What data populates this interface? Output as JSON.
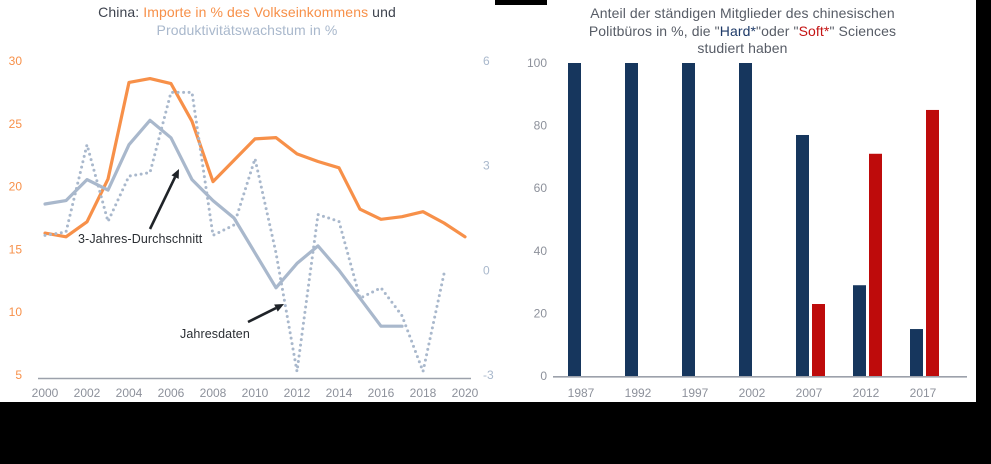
{
  "left_chart": {
    "title_line1_segments": [
      {
        "text": "China: ",
        "color": "#3E434E"
      },
      {
        "text": "Importe in % des Volkseinkommens",
        "color": "#F79049"
      },
      {
        "text": " und",
        "color": "#3E434E"
      }
    ],
    "title_line2_segments": [
      {
        "text": "Produktivitätswachstum in %",
        "color": "#A9B8CC"
      }
    ]
  },
  "right_chart": {
    "title_line1_segments": [
      {
        "text": "Anteil der ständigen Mitglieder des chinesischen",
        "color": "#575C66"
      }
    ],
    "title_line2_segments": [
      {
        "text": "Politbüros in %, die \"",
        "color": "#575C66"
      },
      {
        "text": "Hard*",
        "color": "#1E3A68"
      },
      {
        "text": "\"oder \"",
        "color": "#575C66"
      },
      {
        "text": "Soft*",
        "color": "#C41414"
      },
      {
        "text": "\"  Sciences",
        "color": "#575C66"
      }
    ],
    "title_line3_segments": [
      {
        "text": "studiert haben",
        "color": "#575C66"
      }
    ]
  },
  "chart_data": [
    {
      "type": "line",
      "title": "China: Importe in % des Volkseinkommens und Produktivitätswachstum in %",
      "x": [
        2000,
        2001,
        2002,
        2003,
        2004,
        2005,
        2006,
        2007,
        2008,
        2009,
        2010,
        2011,
        2012,
        2013,
        2014,
        2015,
        2016,
        2017,
        2018,
        2019,
        2020
      ],
      "x_ticks": [
        "2000",
        "2002",
        "2004",
        "2006",
        "2008",
        "2010",
        "2012",
        "2014",
        "2016",
        "2018",
        "2020"
      ],
      "left_axis": {
        "label": "Importe in % des Volkseinkommens",
        "color": "#F79049",
        "range": [
          5,
          30
        ],
        "ticks": [
          "30",
          "25",
          "20",
          "15",
          "10",
          "5"
        ],
        "tick_values": [
          30,
          25,
          20,
          15,
          10,
          5
        ]
      },
      "right_axis": {
        "label": "Produktivitätswachstum in %",
        "color": "#A9B8CC",
        "range": [
          -3,
          6
        ],
        "ticks": [
          "6",
          "3",
          "0",
          "-3"
        ],
        "tick_values": [
          6,
          3,
          0,
          -3
        ]
      },
      "series": [
        {
          "name": "Importe in % des Volkseinkommens",
          "axis": "left",
          "style": "solid",
          "color": "#F79049",
          "values": [
            16.3,
            16.0,
            17.2,
            20.6,
            28.3,
            28.6,
            28.2,
            25.2,
            20.4,
            22.1,
            23.8,
            23.9,
            22.6,
            22.0,
            21.5,
            18.2,
            17.4,
            17.6,
            18.0,
            17.1,
            16.0
          ]
        },
        {
          "name": "3-Jahres-Durchschnitt",
          "axis": "right",
          "style": "solid",
          "color": "#A9B8CC",
          "values": [
            1.9,
            2.0,
            2.6,
            2.3,
            3.6,
            4.3,
            3.8,
            2.6,
            2.0,
            1.5,
            0.5,
            -0.5,
            0.2,
            0.7,
            0.0,
            -0.8,
            -1.6,
            -1.6,
            null,
            null,
            null
          ]
        },
        {
          "name": "Jahresdaten",
          "axis": "right",
          "style": "dotted",
          "color": "#A9B8CC",
          "values": [
            1.0,
            1.1,
            3.6,
            1.4,
            2.7,
            2.8,
            5.1,
            5.1,
            1.0,
            1.3,
            3.2,
            0.5,
            -2.9,
            1.6,
            1.4,
            -0.8,
            -0.5,
            -1.3,
            -2.9,
            -0.1,
            null
          ]
        }
      ],
      "annotations": [
        {
          "label": "3-Jahres-Durchschnitt"
        },
        {
          "label": "Jahresdaten"
        }
      ]
    },
    {
      "type": "bar",
      "title": "Anteil der ständigen Mitglieder des chinesischen Politbüros in %, die \"Hard*\" oder \"Soft*\" Sciences studiert haben",
      "categories": [
        "1987",
        "1992",
        "1997",
        "2002",
        "2007",
        "2012",
        "2017"
      ],
      "series": [
        {
          "name": "Hard* Sciences",
          "color": "#16365D",
          "values": [
            100,
            100,
            100,
            100,
            77,
            29,
            15
          ]
        },
        {
          "name": "Soft* Sciences",
          "color": "#BE0B0B",
          "values": [
            0,
            0,
            0,
            0,
            23,
            71,
            85
          ]
        }
      ],
      "ylim": [
        0,
        100
      ],
      "yticks": [
        "100",
        "80",
        "60",
        "40",
        "20",
        "0"
      ],
      "ytick_values": [
        100,
        80,
        60,
        40,
        20,
        0
      ],
      "xlabel": "",
      "ylabel": ""
    }
  ]
}
